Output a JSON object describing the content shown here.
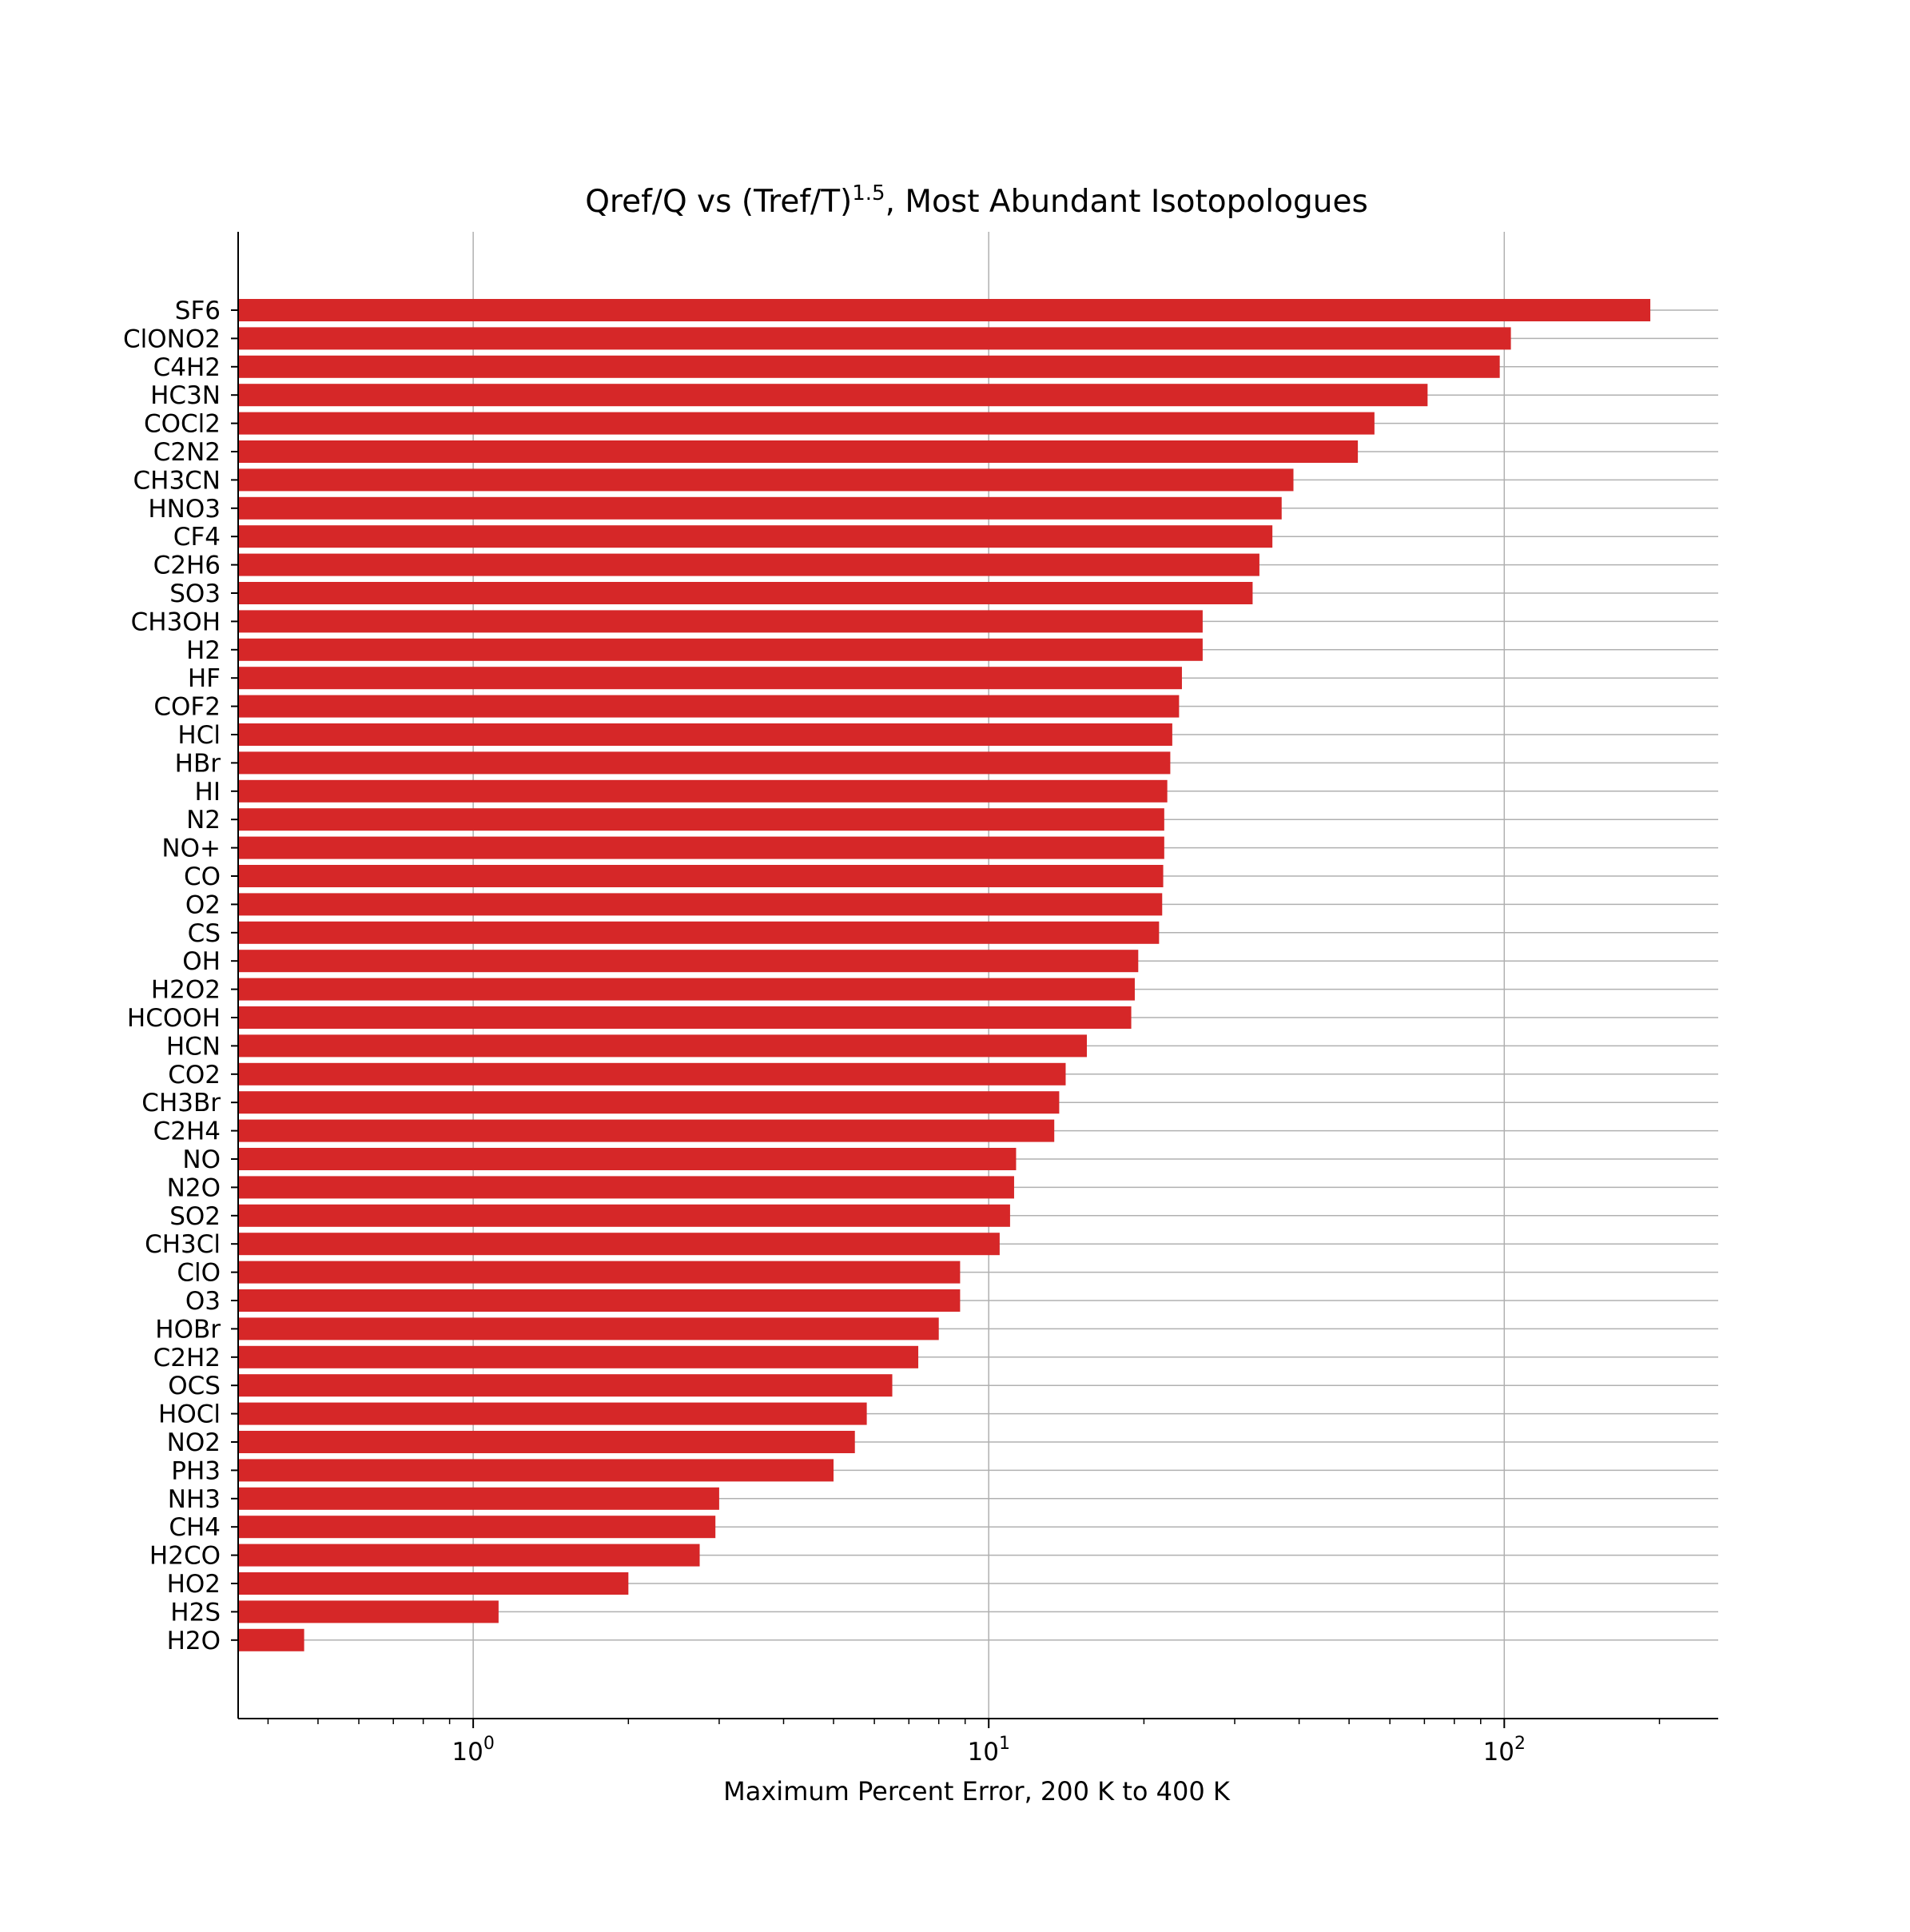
{
  "colors": {
    "bar": "#d62728",
    "grid": "#b0b0b0",
    "axis": "#000000"
  },
  "chart_data": {
    "type": "bar",
    "orientation": "horizontal",
    "title": "Qref/Q vs (Tref/T)",
    "title_superscript": "1.5",
    "title_suffix": ", Most Abundant Isotopologues",
    "xlabel": "Maximum Percent Error, 200 K to 400 K",
    "ylabel": "",
    "xscale": "log",
    "xlim": [
      0.35,
      260
    ],
    "xticks": [
      {
        "value": 1,
        "base": "10",
        "exp": "0"
      },
      {
        "value": 10,
        "base": "10",
        "exp": "1"
      },
      {
        "value": 100,
        "base": "10",
        "exp": "2"
      }
    ],
    "grid": true,
    "legend": "none",
    "categories": [
      "SF6",
      "ClONO2",
      "C4H2",
      "HC3N",
      "COCl2",
      "C2N2",
      "CH3CN",
      "HNO3",
      "CF4",
      "C2H6",
      "SO3",
      "CH3OH",
      "H2",
      "HF",
      "COF2",
      "HCl",
      "HBr",
      "HI",
      "N2",
      "NO+",
      "CO",
      "O2",
      "CS",
      "OH",
      "H2O2",
      "HCOOH",
      "HCN",
      "CO2",
      "CH3Br",
      "C2H4",
      "NO",
      "N2O",
      "SO2",
      "CH3Cl",
      "ClO",
      "O3",
      "HOBr",
      "C2H2",
      "OCS",
      "HOCl",
      "NO2",
      "PH3",
      "NH3",
      "CH4",
      "H2CO",
      "HO2",
      "H2S",
      "H2O"
    ],
    "values": [
      192,
      103,
      98,
      71,
      56,
      52,
      39,
      37,
      35.5,
      33.5,
      32.5,
      26,
      26,
      23.7,
      23.4,
      22.7,
      22.5,
      22.2,
      21.9,
      21.9,
      21.8,
      21.7,
      21.4,
      19.5,
      19.2,
      18.9,
      15.5,
      14.1,
      13.7,
      13.4,
      11.3,
      11.2,
      11.0,
      10.5,
      8.8,
      8.8,
      8.0,
      7.3,
      6.5,
      5.8,
      5.5,
      5.0,
      3.0,
      2.95,
      2.75,
      2.0,
      1.12,
      0.47
    ]
  }
}
